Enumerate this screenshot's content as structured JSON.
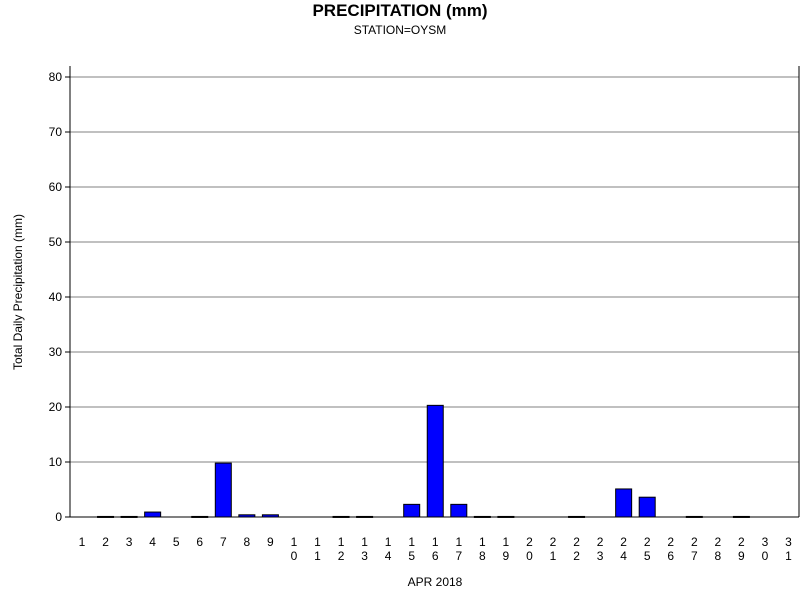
{
  "chart_data": {
    "type": "bar",
    "title": "PRECIPITATION (mm)",
    "subtitle": "STATION=OYSM",
    "xlabel": "APR 2018",
    "ylabel": "Total Daily Precipitation (mm)",
    "ylim": [
      0,
      80
    ],
    "yticks": [
      0,
      10,
      20,
      30,
      40,
      50,
      60,
      70,
      80
    ],
    "grid": true,
    "bar_color": "#0000ff",
    "categories": [
      "1",
      "2",
      "3",
      "4",
      "5",
      "6",
      "7",
      "8",
      "9",
      "10",
      "11",
      "12",
      "13",
      "14",
      "15",
      "16",
      "17",
      "18",
      "19",
      "20",
      "21",
      "22",
      "23",
      "24",
      "25",
      "26",
      "27",
      "28",
      "29",
      "30",
      "31"
    ],
    "values": [
      0,
      0.1,
      0.1,
      0.9,
      0,
      0.1,
      9.8,
      0.4,
      0.4,
      0,
      0,
      0.1,
      0.1,
      0,
      2.3,
      20.3,
      2.3,
      0.1,
      0.1,
      0,
      0,
      0.1,
      0,
      5.1,
      3.6,
      0,
      0.1,
      0,
      0.1,
      0,
      0
    ]
  }
}
